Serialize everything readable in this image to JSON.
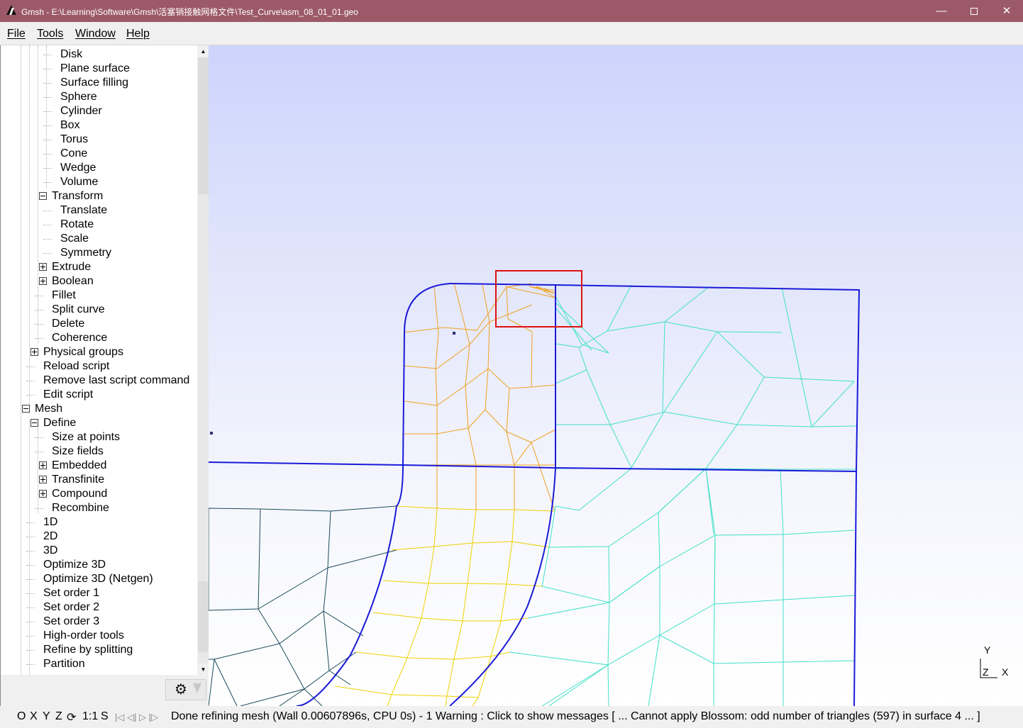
{
  "window": {
    "title": "Gmsh - E:\\Learning\\Software\\Gmsh\\活塞销接触网格文件\\Test_Curve\\asm_08_01_01.geo",
    "minimize": "—",
    "close": "✕"
  },
  "menu": [
    "File",
    "Tools",
    "Window",
    "Help"
  ],
  "tree": {
    "items": [
      {
        "label": "Disk",
        "level": 3
      },
      {
        "label": "Plane surface",
        "level": 3
      },
      {
        "label": "Surface filling",
        "level": 3
      },
      {
        "label": "Sphere",
        "level": 3
      },
      {
        "label": "Cylinder",
        "level": 3
      },
      {
        "label": "Box",
        "level": 3
      },
      {
        "label": "Torus",
        "level": 3
      },
      {
        "label": "Cone",
        "level": 3
      },
      {
        "label": "Wedge",
        "level": 3
      },
      {
        "label": "Volume",
        "level": 3
      },
      {
        "label": "Transform",
        "level": 2,
        "expander": "minus"
      },
      {
        "label": "Translate",
        "level": 3
      },
      {
        "label": "Rotate",
        "level": 3
      },
      {
        "label": "Scale",
        "level": 3
      },
      {
        "label": "Symmetry",
        "level": 3
      },
      {
        "label": "Extrude",
        "level": 2,
        "expander": "plus"
      },
      {
        "label": "Boolean",
        "level": 2,
        "expander": "plus"
      },
      {
        "label": "Fillet",
        "level": 2
      },
      {
        "label": "Split curve",
        "level": 2
      },
      {
        "label": "Delete",
        "level": 2
      },
      {
        "label": "Coherence",
        "level": 2
      },
      {
        "label": "Physical groups",
        "level": 1,
        "expander": "plus"
      },
      {
        "label": "Reload script",
        "level": 1
      },
      {
        "label": "Remove last script command",
        "level": 1
      },
      {
        "label": "Edit script",
        "level": 1
      },
      {
        "label": "Mesh",
        "level": 0,
        "expander": "minus"
      },
      {
        "label": "Define",
        "level": 1,
        "expander": "minus"
      },
      {
        "label": "Size at points",
        "level": 2
      },
      {
        "label": "Size fields",
        "level": 2
      },
      {
        "label": "Embedded",
        "level": 2,
        "expander": "plus"
      },
      {
        "label": "Transfinite",
        "level": 2,
        "expander": "plus"
      },
      {
        "label": "Compound",
        "level": 2,
        "expander": "plus"
      },
      {
        "label": "Recombine",
        "level": 2
      },
      {
        "label": "1D",
        "level": 1
      },
      {
        "label": "2D",
        "level": 1
      },
      {
        "label": "3D",
        "level": 1
      },
      {
        "label": "Optimize 3D",
        "level": 1
      },
      {
        "label": "Optimize 3D (Netgen)",
        "level": 1
      },
      {
        "label": "Set order 1",
        "level": 1
      },
      {
        "label": "Set order 2",
        "level": 1
      },
      {
        "label": "Set order 3",
        "level": 1
      },
      {
        "label": "High-order tools",
        "level": 1
      },
      {
        "label": "Refine by splitting",
        "level": 1
      },
      {
        "label": "Partition",
        "level": 1
      }
    ]
  },
  "axes": {
    "y": "Y",
    "z": "Z",
    "x": "X"
  },
  "status": {
    "view_buttons": [
      "O",
      "X",
      "Y",
      "Z"
    ],
    "rotate_icon": "⟳",
    "scale": "1:1",
    "s_button": "S",
    "nav_icons": "|◁ ◁| ▷ |▷",
    "message": "Done refining mesh (Wall 0.00607896s, CPU 0s)  -  1 Warning : Click to show messages [ ... Cannot apply Blossom: odd number of triangles (597) in surface 4 ... ]"
  },
  "colors": {
    "title_bar": "#9c5a68",
    "boundary": "#1a1ad8",
    "mesh_orange": "#f0a020",
    "mesh_yellow": "#f0d000",
    "mesh_cyan": "#40e0c8",
    "mesh_dark": "#1a4a5a",
    "highlight_box": "#dd1111"
  }
}
